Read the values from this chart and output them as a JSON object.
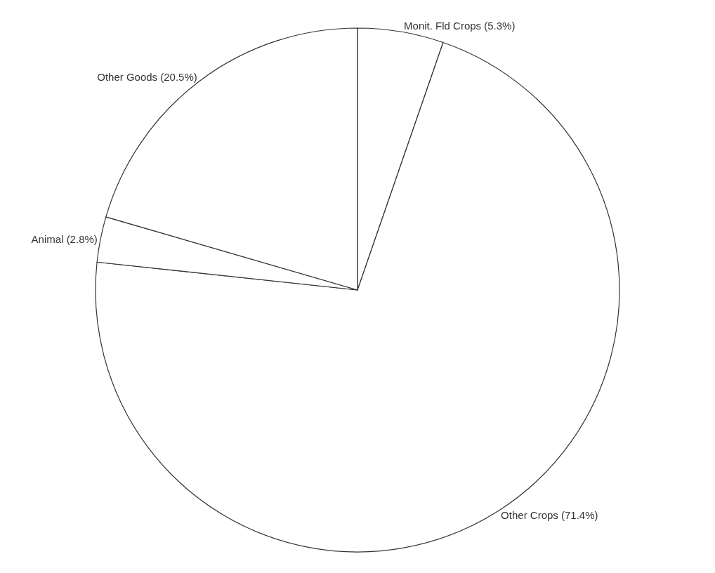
{
  "chart_data": {
    "type": "pie",
    "categories": [
      "Monit. Fld Crops (5.3%)",
      "Other Crops (71.4%)",
      "Animal (2.8%)",
      "Other Goods (20.5%)"
    ],
    "values": [
      5.3,
      71.4,
      2.8,
      20.5
    ],
    "colors": [
      "#ffffff",
      "#ffffff",
      "#ffffff",
      "#ffffff"
    ],
    "legend": false
  }
}
